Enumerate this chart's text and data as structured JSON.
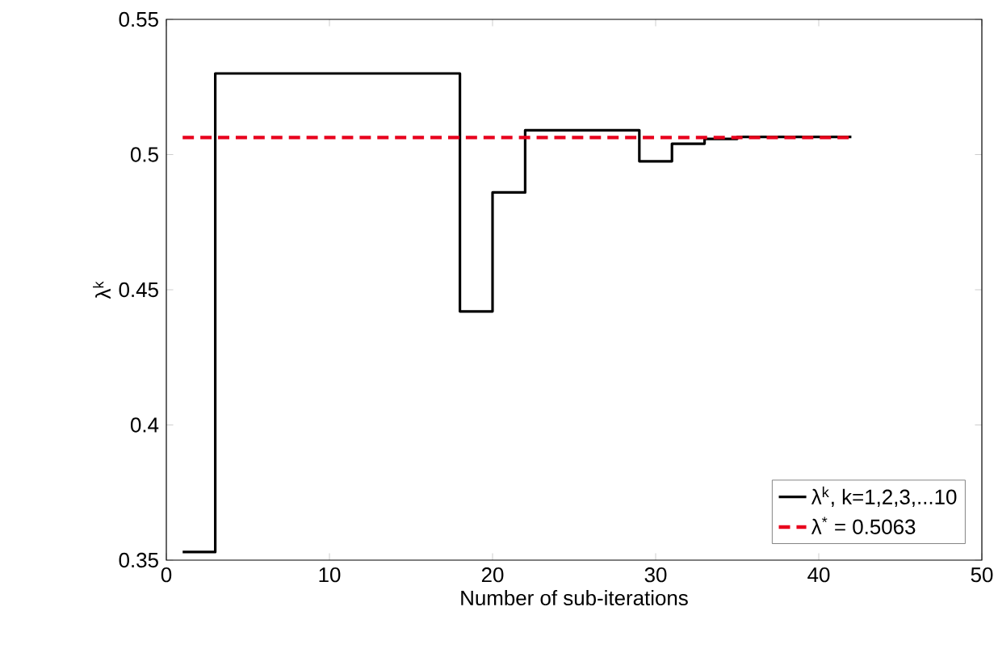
{
  "chart_data": {
    "type": "step",
    "xlabel": "Number of sub-iterations",
    "ylabel": "λ$^{k}$",
    "xlim": [
      0,
      50
    ],
    "xticks": [
      0,
      10,
      20,
      30,
      40,
      50
    ],
    "ylim": [
      0.35,
      0.55
    ],
    "yticks": [
      0.35,
      0.4,
      0.45,
      0.5,
      0.55
    ],
    "legend": "bottom right",
    "grid": false,
    "marker": "none",
    "series": [
      {
        "name": "λ$^{k}$, k=1,2,3,...10",
        "color": "#000000",
        "line_style": "solid",
        "x": [
          1,
          3,
          18,
          20,
          22,
          29,
          31,
          33,
          35,
          42
        ],
        "values": [
          0.353,
          0.53,
          0.442,
          0.486,
          0.509,
          0.4975,
          0.504,
          0.5058,
          0.5065,
          0.5065
        ]
      },
      {
        "name": "λ$^{*}$ = 0.5063",
        "type": "line",
        "color": "#e8001c",
        "line_style": "dashed",
        "x": [
          1,
          42
        ],
        "values": [
          0.5063,
          0.5063
        ]
      }
    ]
  }
}
